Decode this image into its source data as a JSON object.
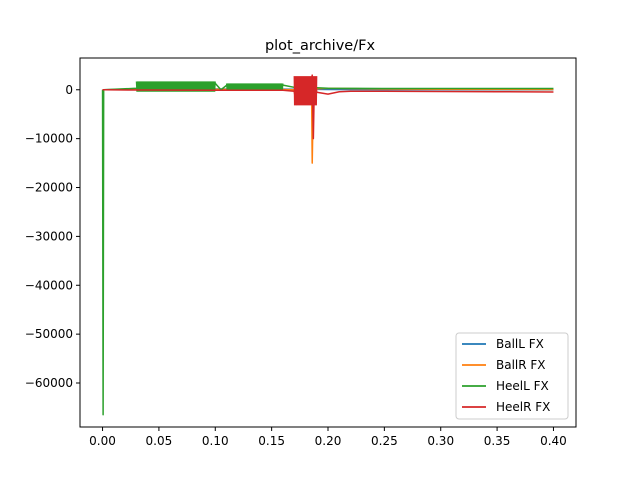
{
  "chart_data": {
    "type": "line",
    "title": "plot_archive/Fx",
    "xlabel": "",
    "ylabel": "",
    "xlim": [
      -0.02,
      0.42
    ],
    "ylim": [
      -69000,
      6500
    ],
    "xticks": [
      0.0,
      0.05,
      0.1,
      0.15,
      0.2,
      0.25,
      0.3,
      0.35,
      0.4
    ],
    "xtick_labels": [
      "0.00",
      "0.05",
      "0.10",
      "0.15",
      "0.20",
      "0.25",
      "0.30",
      "0.35",
      "0.40"
    ],
    "yticks": [
      0,
      -10000,
      -20000,
      -30000,
      -40000,
      -50000,
      -60000
    ],
    "ytick_labels": [
      "0",
      "−10000",
      "−20000",
      "−30000",
      "−40000",
      "−50000",
      "−60000"
    ],
    "grid": false,
    "legend_position": "lower-right",
    "series": [
      {
        "name": "BallL FX",
        "color": "#1f77b4",
        "x": [
          0.0,
          0.001,
          0.03,
          0.07,
          0.1,
          0.12,
          0.15,
          0.17,
          0.185,
          0.19,
          0.2,
          0.25,
          0.3,
          0.35,
          0.4
        ],
        "y": [
          0,
          0,
          120,
          180,
          150,
          130,
          120,
          100,
          80,
          80,
          60,
          40,
          20,
          10,
          0
        ]
      },
      {
        "name": "BallR FX",
        "color": "#ff7f0e",
        "x": [
          0.0,
          0.001,
          0.03,
          0.1,
          0.15,
          0.17,
          0.18,
          0.1855,
          0.186,
          0.1865,
          0.187,
          0.188,
          0.19,
          0.2,
          0.25,
          0.3,
          0.35,
          0.4
        ],
        "y": [
          0,
          0,
          50,
          80,
          60,
          0,
          -200,
          -2000,
          -15000,
          -8000,
          2500,
          -1500,
          200,
          300,
          150,
          100,
          80,
          50
        ]
      },
      {
        "name": "HeelL FX",
        "color": "#2ca02c",
        "x": [
          0.0,
          0.0005,
          0.001,
          0.03,
          0.05,
          0.07,
          0.1,
          0.105,
          0.11,
          0.13,
          0.16,
          0.17,
          0.19,
          0.2,
          0.25,
          0.3,
          0.35,
          0.4
        ],
        "y": [
          0,
          -66500,
          0,
          300,
          800,
          1200,
          1300,
          0,
          900,
          1000,
          950,
          500,
          400,
          300,
          250,
          250,
          250,
          250
        ]
      },
      {
        "name": "HeelR FX",
        "color": "#d62728",
        "x": [
          0.0,
          0.001,
          0.03,
          0.1,
          0.16,
          0.17,
          0.172,
          0.175,
          0.178,
          0.18,
          0.183,
          0.186,
          0.187,
          0.188,
          0.19,
          0.2,
          0.21,
          0.22,
          0.25,
          0.3,
          0.35,
          0.4
        ],
        "y": [
          0,
          0,
          -50,
          -100,
          -100,
          -300,
          -3000,
          1000,
          -2500,
          800,
          -2000,
          3000,
          -10000,
          2500,
          -500,
          -900,
          -400,
          -300,
          -300,
          -350,
          -400,
          -450
        ]
      }
    ],
    "bands": [
      {
        "series": "HeelL FX",
        "x": [
          0.03,
          0.1
        ],
        "y": [
          -400,
          1700
        ],
        "steps": 140
      },
      {
        "series": "HeelL FX",
        "x": [
          0.11,
          0.16
        ],
        "y": [
          -200,
          1300
        ],
        "steps": 100
      },
      {
        "series": "HeelR FX",
        "x": [
          0.17,
          0.19
        ],
        "y": [
          -3200,
          2800
        ],
        "steps": 60
      }
    ]
  }
}
